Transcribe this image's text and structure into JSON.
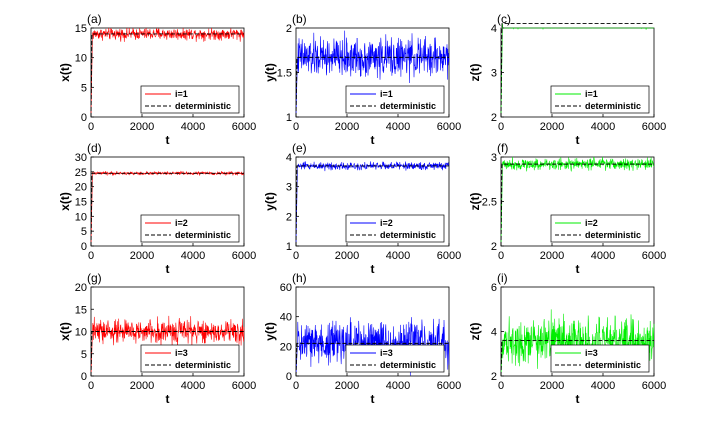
{
  "chart_data": [
    {
      "panel_label": "(a)",
      "type": "line",
      "xlabel": "t",
      "ylabel": "x(t)",
      "xlim": [
        0,
        6000
      ],
      "ylim": [
        0,
        15
      ],
      "xticks": [
        0,
        2000,
        4000,
        6000
      ],
      "yticks": [
        0,
        5,
        10,
        15
      ],
      "series": [
        {
          "name": "i=1",
          "color": "#ff0000",
          "style": "solid",
          "mean": 14,
          "spread": 0.9,
          "start": 0
        },
        {
          "name": "deterministic",
          "color": "#000000",
          "style": "dashed",
          "value": 14
        }
      ]
    },
    {
      "panel_label": "(b)",
      "type": "line",
      "xlabel": "t",
      "ylabel": "y(t)",
      "xlim": [
        0,
        6000
      ],
      "ylim": [
        1,
        2
      ],
      "xticks": [
        0,
        2000,
        4000,
        6000
      ],
      "yticks": [
        1,
        1.5,
        2
      ],
      "series": [
        {
          "name": "i=1",
          "color": "#0000ff",
          "style": "solid",
          "mean": 1.67,
          "spread": 0.2,
          "start": 1
        },
        {
          "name": "deterministic",
          "color": "#000000",
          "style": "dashed",
          "value": 1.67
        }
      ]
    },
    {
      "panel_label": "(c)",
      "type": "line",
      "xlabel": "t",
      "ylabel": "z(t)",
      "xlim": [
        0,
        6000
      ],
      "ylim": [
        2,
        4
      ],
      "xticks": [
        0,
        2000,
        4000,
        6000
      ],
      "yticks": [
        2,
        3,
        4
      ],
      "series": [
        {
          "name": "i=1",
          "color": "#00ee00",
          "style": "solid",
          "mean": 4.1,
          "spread": 0.1,
          "start": 2
        },
        {
          "name": "deterministic",
          "color": "#000000",
          "style": "dashed",
          "value": 4.1
        }
      ]
    },
    {
      "panel_label": "(d)",
      "type": "line",
      "xlabel": "t",
      "ylabel": "x(t)",
      "xlim": [
        0,
        6000
      ],
      "ylim": [
        0,
        30
      ],
      "xticks": [
        0,
        2000,
        4000,
        6000
      ],
      "yticks": [
        0,
        5,
        10,
        15,
        20,
        25,
        30
      ],
      "series": [
        {
          "name": "i=2",
          "color": "#ff0000",
          "style": "solid",
          "mean": 24.5,
          "spread": 0.5,
          "start": 0
        },
        {
          "name": "deterministic",
          "color": "#000000",
          "style": "dashed",
          "value": 24.5
        }
      ]
    },
    {
      "panel_label": "(e)",
      "type": "line",
      "xlabel": "t",
      "ylabel": "y(t)",
      "xlim": [
        0,
        6000
      ],
      "ylim": [
        1,
        4
      ],
      "xticks": [
        0,
        2000,
        4000,
        6000
      ],
      "yticks": [
        1,
        2,
        3,
        4
      ],
      "series": [
        {
          "name": "i=2",
          "color": "#0000ff",
          "style": "solid",
          "mean": 3.7,
          "spread": 0.12,
          "start": 1
        },
        {
          "name": "deterministic",
          "color": "#000000",
          "style": "dashed",
          "value": 3.7
        }
      ]
    },
    {
      "panel_label": "(f)",
      "type": "line",
      "xlabel": "t",
      "ylabel": "z(t)",
      "xlim": [
        0,
        6000
      ],
      "ylim": [
        2,
        3
      ],
      "xticks": [
        0,
        2000,
        4000,
        6000
      ],
      "yticks": [
        2,
        2.5,
        3
      ],
      "series": [
        {
          "name": "i=2",
          "color": "#00ee00",
          "style": "solid",
          "mean": 2.92,
          "spread": 0.06,
          "start": 2
        },
        {
          "name": "deterministic",
          "color": "#000000",
          "style": "dashed",
          "value": 2.92
        }
      ]
    },
    {
      "panel_label": "(g)",
      "type": "line",
      "xlabel": "t",
      "ylabel": "x(t)",
      "xlim": [
        0,
        6000
      ],
      "ylim": [
        0,
        20
      ],
      "xticks": [
        0,
        2000,
        4000,
        6000
      ],
      "yticks": [
        0,
        5,
        10,
        15,
        20
      ],
      "series": [
        {
          "name": "i=3",
          "color": "#ff0000",
          "style": "solid",
          "mean": 10,
          "spread": 2.5,
          "start": 0
        },
        {
          "name": "deterministic",
          "color": "#000000",
          "style": "dashed",
          "value": 10
        }
      ]
    },
    {
      "panel_label": "(h)",
      "type": "line",
      "xlabel": "t",
      "ylabel": "y(t)",
      "xlim": [
        0,
        6000
      ],
      "ylim": [
        0,
        60
      ],
      "xticks": [
        0,
        2000,
        4000,
        6000
      ],
      "yticks": [
        0,
        20,
        40,
        60
      ],
      "series": [
        {
          "name": "i=3",
          "color": "#0000ff",
          "style": "solid",
          "mean": 22,
          "spread": 14,
          "start": 0
        },
        {
          "name": "deterministic",
          "color": "#000000",
          "style": "dashed",
          "value": 22
        }
      ]
    },
    {
      "panel_label": "(i)",
      "type": "line",
      "xlabel": "t",
      "ylabel": "z(t)",
      "xlim": [
        0,
        6000
      ],
      "ylim": [
        2,
        6
      ],
      "xticks": [
        0,
        2000,
        4000,
        6000
      ],
      "yticks": [
        2,
        4,
        6
      ],
      "series": [
        {
          "name": "i=3",
          "color": "#00ee00",
          "style": "solid",
          "mean": 3.6,
          "spread": 0.9,
          "start": 2
        },
        {
          "name": "deterministic",
          "color": "#000000",
          "style": "dashed",
          "value": 3.6
        }
      ]
    }
  ]
}
